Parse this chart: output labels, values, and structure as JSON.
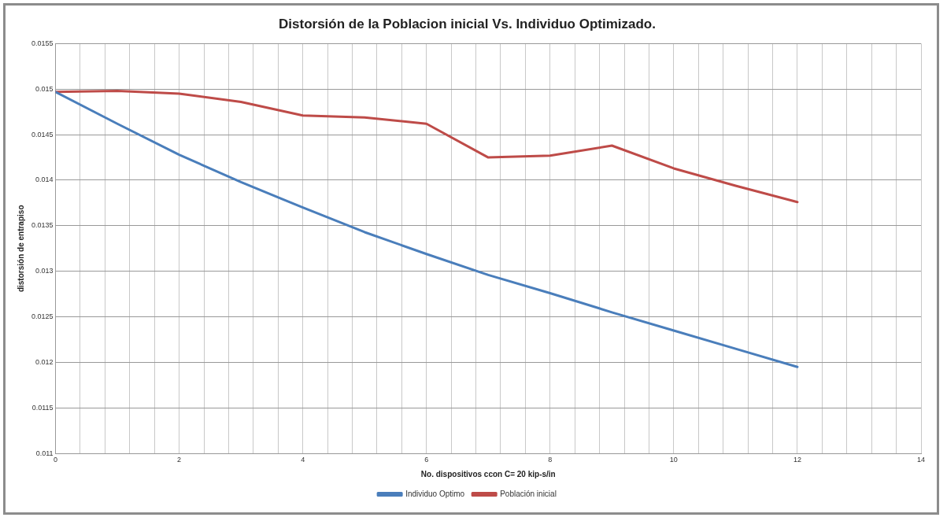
{
  "chart_data": {
    "type": "line",
    "title": "Distorsión de la Poblacion inicial Vs. Individuo Optimizado.",
    "xlabel": "No. dispositivos ccon C= 20 kip-s/in",
    "ylabel": "distorsión de entrapiso",
    "x": [
      0,
      1,
      2,
      3,
      4,
      5,
      6,
      7,
      8,
      9,
      10,
      11,
      12
    ],
    "series": [
      {
        "name": "Individuo Optimo",
        "color": "#4a7ebb",
        "values": [
          0.01497,
          0.01462,
          0.01428,
          0.01398,
          0.0137,
          0.01343,
          0.01319,
          0.01296,
          0.01276,
          0.01255,
          0.01235,
          0.01215,
          0.01195
        ]
      },
      {
        "name": "Población inicial",
        "color": "#be4b48",
        "values": [
          0.01497,
          0.01498,
          0.01495,
          0.01486,
          0.01471,
          0.01469,
          0.01462,
          0.01425,
          0.01427,
          0.01438,
          0.01413,
          0.01394,
          0.01376
        ]
      }
    ],
    "xlim": [
      0,
      14
    ],
    "xticks": [
      0,
      {
        "value": 0.4,
        "label": null
      },
      {
        "value": 0.8,
        "label": null
      },
      {
        "value": 1.2,
        "label": null
      },
      {
        "value": 1.6,
        "label": null
      },
      2,
      {
        "value": 2.4,
        "label": null
      },
      {
        "value": 2.8,
        "label": null
      },
      {
        "value": 3.2,
        "label": null
      },
      {
        "value": 3.6,
        "label": null
      },
      4,
      {
        "value": 4.4,
        "label": null
      },
      {
        "value": 4.8,
        "label": null
      },
      {
        "value": 5.2,
        "label": null
      },
      {
        "value": 5.6,
        "label": null
      },
      6,
      {
        "value": 6.4,
        "label": null
      },
      {
        "value": 6.8,
        "label": null
      },
      {
        "value": 7.2,
        "label": null
      },
      {
        "value": 7.6,
        "label": null
      },
      8,
      {
        "value": 8.4,
        "label": null
      },
      {
        "value": 8.8,
        "label": null
      },
      {
        "value": 9.2,
        "label": null
      },
      {
        "value": 9.6,
        "label": null
      },
      10,
      {
        "value": 10.4,
        "label": null
      },
      {
        "value": 10.8,
        "label": null
      },
      {
        "value": 11.2,
        "label": null
      },
      {
        "value": 11.6,
        "label": null
      },
      12,
      {
        "value": 12.4,
        "label": null
      },
      {
        "value": 12.8,
        "label": null
      },
      {
        "value": 13.2,
        "label": null
      },
      {
        "value": 13.6,
        "label": null
      },
      14
    ],
    "ylim": [
      0.011,
      0.0155
    ],
    "yticks": [
      0.011,
      0.0115,
      0.012,
      0.0125,
      0.013,
      0.0135,
      0.014,
      0.0145,
      0.015,
      0.0155
    ],
    "grid": true,
    "legend": "bottom",
    "marker": "none",
    "line_style": "solid"
  }
}
